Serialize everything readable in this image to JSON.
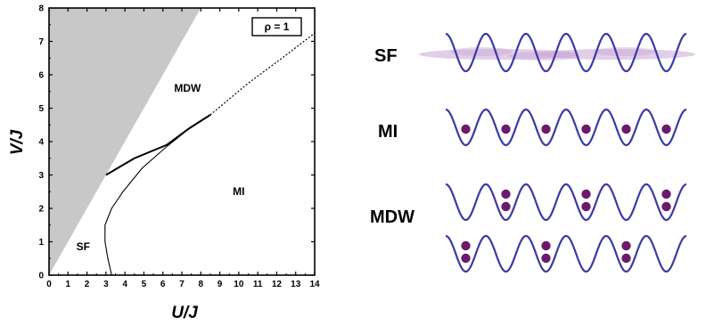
{
  "chart_data": {
    "type": "line",
    "title": "",
    "xlabel": "U/J",
    "ylabel": "V/J",
    "xlim": [
      0,
      14
    ],
    "ylim": [
      0,
      8
    ],
    "xticks": [
      "0",
      "1",
      "2",
      "3",
      "4",
      "5",
      "6",
      "7",
      "8",
      "9",
      "10",
      "11",
      "12",
      "13",
      "14"
    ],
    "yticks": [
      "0",
      "1",
      "2",
      "3",
      "4",
      "5",
      "6",
      "7",
      "8"
    ],
    "annotation": "ρ = 1",
    "regions": [
      {
        "label": "SF",
        "x": 1.8,
        "y": 0.75
      },
      {
        "label": "MDW",
        "x": 7.3,
        "y": 5.5
      },
      {
        "label": "MI",
        "x": 10.0,
        "y": 2.4
      }
    ],
    "series": [
      {
        "style": "shaded",
        "points": [
          [
            0,
            0
          ],
          [
            8.0,
            8
          ],
          [
            0,
            8
          ]
        ]
      },
      {
        "style": "thin",
        "points": [
          [
            3.3,
            0
          ],
          [
            3.1,
            0.5
          ],
          [
            2.95,
            1.0
          ],
          [
            2.95,
            1.5
          ],
          [
            3.3,
            2.0
          ],
          [
            3.9,
            2.5
          ],
          [
            4.9,
            3.2
          ],
          [
            6.1,
            3.8
          ],
          [
            7.3,
            4.35
          ],
          [
            8.5,
            4.8
          ]
        ]
      },
      {
        "style": "thick",
        "points": [
          [
            3.0,
            3.0
          ],
          [
            4.5,
            3.5
          ],
          [
            6.2,
            3.9
          ],
          [
            7.4,
            4.4
          ],
          [
            8.5,
            4.8
          ]
        ]
      },
      {
        "style": "dotted",
        "points": [
          [
            8.5,
            4.8
          ],
          [
            10.5,
            5.75
          ],
          [
            12.4,
            6.55
          ],
          [
            14.0,
            7.25
          ]
        ]
      }
    ]
  },
  "right_panel": {
    "labels": [
      "SF",
      "MI",
      "MDW"
    ],
    "colors": {
      "wave": "#3a3aa6",
      "atom": "#6b1a6e",
      "cloud": "#c9a6d6"
    }
  },
  "colors": {
    "shade": "#c8c8c8"
  }
}
